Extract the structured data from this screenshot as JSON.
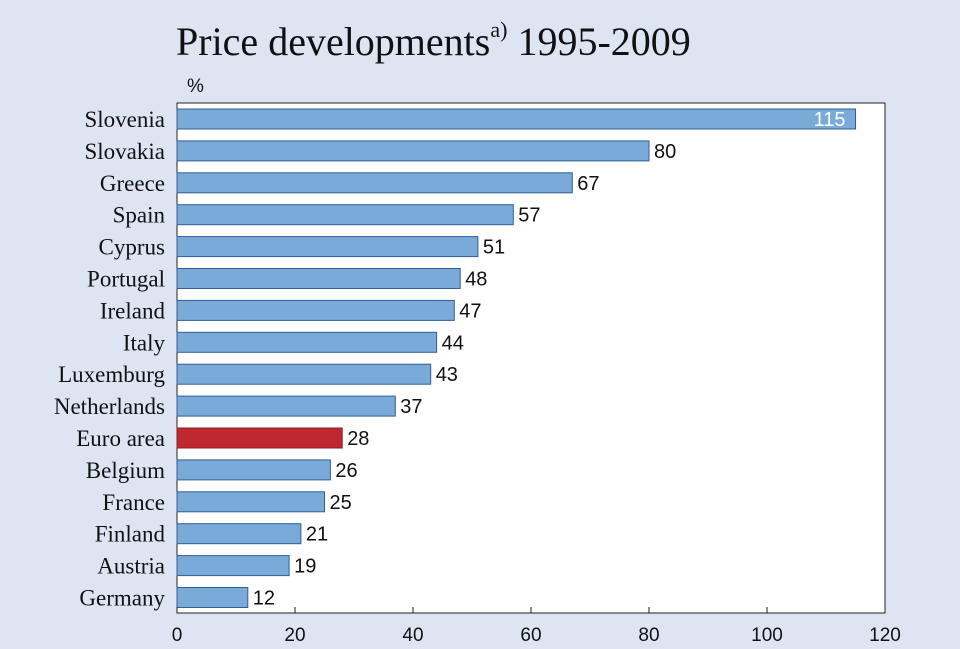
{
  "chart_data": {
    "type": "bar",
    "orientation": "horizontal",
    "title": "Price developments",
    "title_superscript": "a)",
    "title_period": "1995-2009",
    "unit": "%",
    "categories": [
      "Slovenia",
      "Slovakia",
      "Greece",
      "Spain",
      "Cyprus",
      "Portugal",
      "Ireland",
      "Italy",
      "Luxemburg",
      "Netherlands",
      "Euro area",
      "Belgium",
      "France",
      "Finland",
      "Austria",
      "Germany"
    ],
    "values": [
      115,
      80,
      67,
      57,
      51,
      48,
      47,
      44,
      43,
      37,
      28,
      26,
      25,
      21,
      19,
      12
    ],
    "highlight_category": "Euro area",
    "xlim": [
      0,
      120
    ],
    "xticks": [
      0,
      20,
      40,
      60,
      80,
      100,
      120
    ],
    "grid": false,
    "colors": {
      "bar": "#7aaad8",
      "bar_edge": "#2f5f95",
      "highlight": "#c0282f",
      "highlight_edge": "#8c1c22"
    }
  }
}
